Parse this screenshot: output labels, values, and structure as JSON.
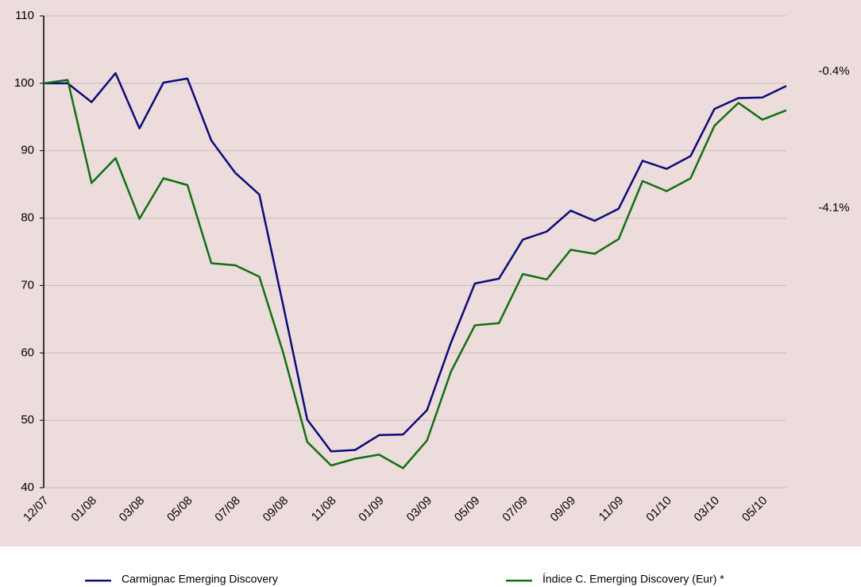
{
  "chart_data": {
    "type": "line",
    "categories": [
      "12/07",
      null,
      "01/08",
      null,
      "03/08",
      null,
      "05/08",
      null,
      "07/08",
      null,
      "09/08",
      null,
      "11/08",
      null,
      "01/09",
      null,
      "03/09",
      null,
      "05/09",
      null,
      "07/09",
      null,
      "09/09",
      null,
      "11/09",
      null,
      "01/10",
      null,
      "03/10",
      null,
      "05/10",
      null
    ],
    "series": [
      {
        "name": "Carmignac Emerging Discovery",
        "color": "#0c0c7a",
        "values": [
          100,
          100,
          97.2,
          101.5,
          93.3,
          100.1,
          100.7,
          91.5,
          86.7,
          83.5,
          67,
          50.1,
          45.4,
          45.6,
          47.8,
          47.9,
          51.5,
          61.5,
          70.3,
          71,
          76.8,
          78,
          81.1,
          79.6,
          81.4,
          88.5,
          87.3,
          89.2,
          96.2,
          97.8,
          97.9,
          99.6
        ]
      },
      {
        "name": "Índice C. Emerging Discovery (Eur) *",
        "color": "#127012",
        "values": [
          100,
          100.5,
          85.2,
          88.9,
          79.9,
          85.9,
          84.9,
          73.3,
          73,
          71.3,
          60,
          46.8,
          43.3,
          44.3,
          44.9,
          42.9,
          47,
          57.2,
          64.1,
          64.4,
          71.7,
          70.9,
          75.3,
          74.7,
          76.9,
          85.5,
          84,
          85.9,
          93.7,
          97.1,
          94.6,
          96
        ]
      }
    ],
    "annotations": [
      "-0.4%",
      "-4.1%"
    ],
    "ylim": [
      40,
      110
    ],
    "yticks": [
      40,
      50,
      60,
      70,
      80,
      90,
      100,
      110
    ],
    "grid": true
  }
}
